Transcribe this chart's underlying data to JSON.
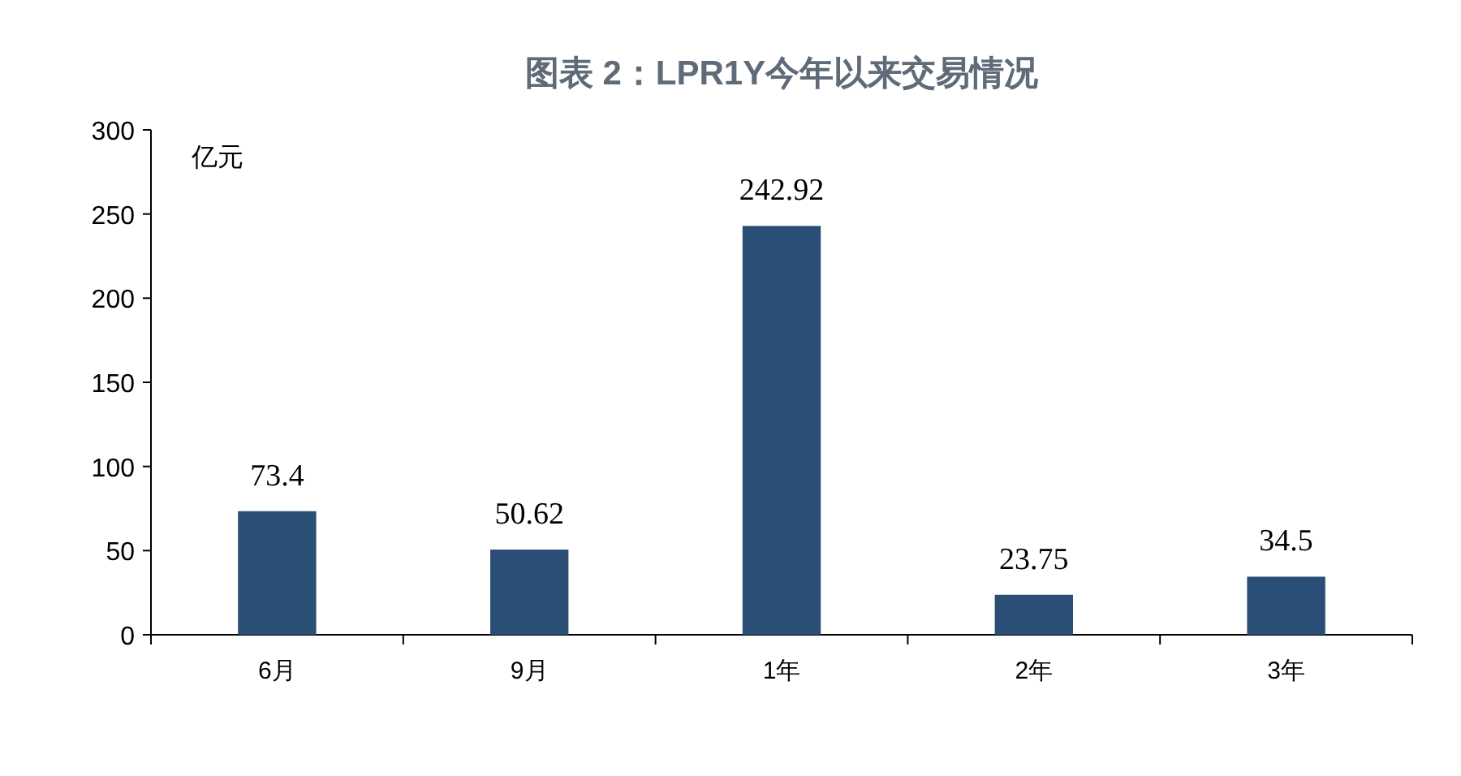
{
  "chart_data": {
    "type": "bar",
    "title": "图表 2：LPR1Y今年以来交易情况",
    "ylabel": "亿元",
    "categories": [
      "6月",
      "9月",
      "1年",
      "2年",
      "3年"
    ],
    "values": [
      73.4,
      50.62,
      242.92,
      23.75,
      34.5
    ],
    "color": "#2a4e75",
    "ylim": [
      0,
      300
    ],
    "yticks": [
      0,
      50,
      100,
      150,
      200,
      250,
      300
    ],
    "data_labels": true
  }
}
